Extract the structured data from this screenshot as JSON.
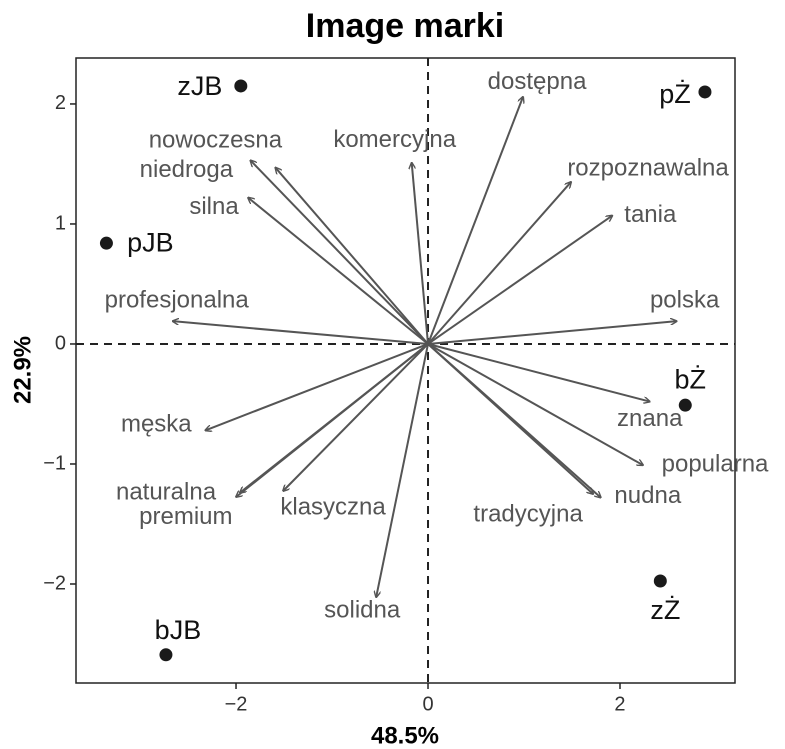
{
  "chart_data": {
    "type": "biplot",
    "title": "Image marki",
    "xlabel": "48.5%",
    "ylabel": "22.9%",
    "xlim": [
      -3.667,
      3.198
    ],
    "ylim": [
      -2.825,
      2.383
    ],
    "xticks": [
      {
        "value": -2,
        "label": "−2"
      },
      0,
      2
    ],
    "yticks": [
      {
        "value": -2,
        "label": "−2"
      },
      {
        "value": -1,
        "label": "−1"
      },
      0,
      1,
      2
    ],
    "point_color": "#1a1a1a",
    "arrow_color": "#555555",
    "points": {
      "labels": [
        "zJB",
        "pŻ",
        "pJB",
        "bŻ",
        "zŻ",
        "bJB"
      ],
      "x": [
        -1.95,
        2.885,
        -3.35,
        2.68,
        2.42,
        -2.73
      ],
      "y": [
        2.15,
        2.1,
        0.84,
        -0.51,
        -1.975,
        -2.59
      ]
    },
    "arrows": {
      "labels": [
        "dostępna",
        "rozpoznawalna",
        "tania",
        "komercyjna",
        "nowoczesna",
        "niedroga",
        "silna",
        "profesjonalna",
        "polska",
        "znana",
        "popularna",
        "nudna",
        "tradycyjna",
        "męska",
        "naturalna",
        "klasyczna",
        "solidna",
        "premium"
      ],
      "x": [
        0.99,
        1.49,
        1.92,
        -0.17,
        -1.85,
        -1.59,
        -1.875,
        -2.66,
        2.59,
        2.31,
        2.24,
        1.8,
        1.72,
        -2.32,
        -2.0,
        -1.51,
        -0.54,
        -1.96
      ],
      "y": [
        2.06,
        1.35,
        1.07,
        1.51,
        1.53,
        1.47,
        1.22,
        0.19,
        0.19,
        -0.48,
        -1.01,
        -1.28,
        -1.25,
        -0.72,
        -1.275,
        -1.225,
        -2.11,
        -1.24
      ]
    }
  }
}
